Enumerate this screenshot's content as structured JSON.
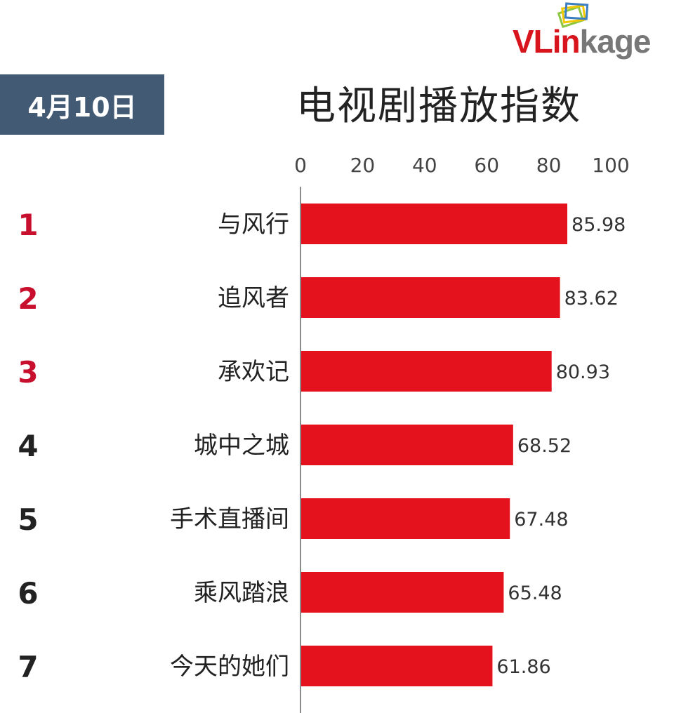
{
  "header": {
    "date": "4月10日",
    "title": "电视剧播放指数",
    "logo_text_part1": "VLin",
    "logo_text_part2": "kage"
  },
  "colors": {
    "bar": "#e3121d",
    "badge_bg": "#435a74",
    "rank_top": "#c8102e",
    "rank_other": "#222222",
    "logo_red": "#d8141c",
    "logo_gray": "#777777",
    "logo_green": "#8dc63f",
    "logo_yellow": "#f4c800",
    "logo_blue": "#3a7fc1"
  },
  "icons": {
    "logo": "vlinkage-stacked-cards-logo"
  },
  "chart_data": {
    "type": "bar",
    "orientation": "horizontal",
    "title": "电视剧播放指数",
    "categories": [
      "与风行",
      "追风者",
      "承欢记",
      "城中之城",
      "手术直播间",
      "乘风踏浪",
      "今天的她们"
    ],
    "ranks": [
      "1",
      "2",
      "3",
      "4",
      "5",
      "6",
      "7"
    ],
    "values": [
      85.98,
      83.62,
      80.93,
      68.52,
      67.48,
      65.48,
      61.86
    ],
    "value_labels": [
      "85.98",
      "83.62",
      "80.93",
      "68.52",
      "67.48",
      "65.48",
      "61.86"
    ],
    "xlim": [
      0,
      100
    ],
    "xticks": [
      0,
      20,
      40,
      60,
      80,
      100
    ],
    "xtick_labels": [
      "0",
      "20",
      "40",
      "60",
      "80",
      "100"
    ],
    "axis_position": "top",
    "grid": false,
    "legend": "none"
  }
}
